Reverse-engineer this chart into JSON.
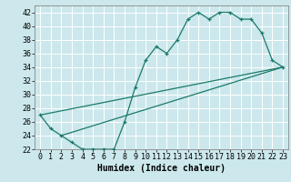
{
  "title": "",
  "xlabel": "Humidex (Indice chaleur)",
  "ylabel": "",
  "bg_color": "#cce8ec",
  "grid_color": "#ffffff",
  "line_color": "#1a7a6a",
  "xlim": [
    -0.5,
    23.5
  ],
  "ylim": [
    22,
    43
  ],
  "yticks": [
    22,
    24,
    26,
    28,
    30,
    32,
    34,
    36,
    38,
    40,
    42
  ],
  "xticks": [
    0,
    1,
    2,
    3,
    4,
    5,
    6,
    7,
    8,
    9,
    10,
    11,
    12,
    13,
    14,
    15,
    16,
    17,
    18,
    19,
    20,
    21,
    22,
    23
  ],
  "line1_x": [
    0,
    1,
    2,
    3,
    4,
    5,
    6,
    7,
    8,
    9,
    10,
    11,
    12,
    13,
    14,
    15,
    16,
    17,
    18,
    19,
    20,
    21,
    22,
    23
  ],
  "line1_y": [
    27,
    25,
    24,
    23,
    22,
    22,
    22,
    22,
    26,
    31,
    35,
    37,
    36,
    38,
    41,
    42,
    41,
    42,
    42,
    41,
    41,
    39,
    35,
    34
  ],
  "line2_x": [
    0,
    23
  ],
  "line2_y": [
    27,
    34
  ],
  "line3_x": [
    2,
    23
  ],
  "line3_y": [
    24,
    34
  ],
  "xlabel_fontsize": 7,
  "tick_fontsize": 6
}
